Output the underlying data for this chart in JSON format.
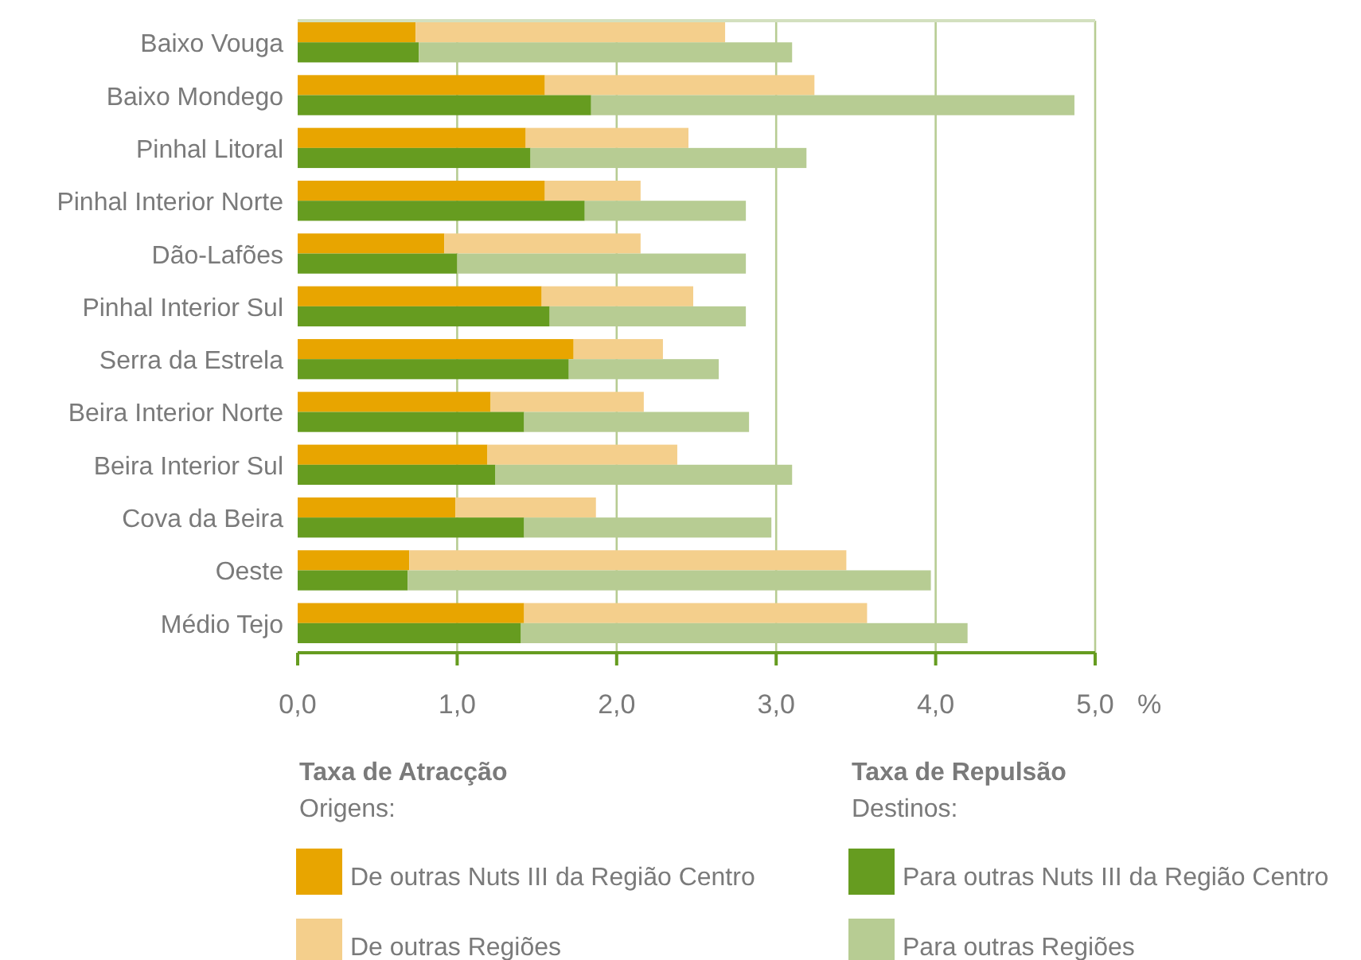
{
  "chart_data": [
    {
      "type": "bar",
      "orientation": "horizontal",
      "stacked": true,
      "categories": [
        "Baixo Vouga",
        "Baixo Mondego",
        "Pinhal Litoral",
        "Pinhal Interior Norte",
        "Dão-Lafões",
        "Pinhal Interior Sul",
        "Serra da Estrela",
        "Beira Interior Norte",
        "Beira Interior Sul",
        "Cova da Beira",
        "Oeste",
        "Médio Tejo"
      ],
      "series": [
        {
          "name": "De outras Nuts III da Região Centro",
          "color": "#e8a500",
          "values": [
            0.74,
            1.55,
            1.43,
            1.55,
            0.92,
            1.53,
            1.73,
            1.21,
            1.19,
            0.99,
            0.7,
            1.42
          ]
        },
        {
          "name": "De outras Regiões",
          "color": "#f4cf8c",
          "values": [
            1.94,
            1.69,
            1.02,
            0.6,
            1.23,
            0.95,
            0.56,
            0.96,
            1.19,
            0.88,
            2.74,
            2.15
          ]
        }
      ],
      "xlim": [
        0,
        5
      ],
      "xticks": [
        {
          "value": 0,
          "label": "0,0"
        },
        {
          "value": 1,
          "label": "1,0"
        },
        {
          "value": 2,
          "label": "2,0"
        },
        {
          "value": 3,
          "label": "3,0"
        },
        {
          "value": 4,
          "label": "4,0"
        },
        {
          "value": 5,
          "label": "5,0"
        }
      ],
      "xlabel": "%",
      "grid": "x",
      "legend": "bottom",
      "legend_title": "Taxa de Atracção",
      "annotations": [
        "Origens:"
      ]
    },
    {
      "type": "bar",
      "orientation": "horizontal",
      "stacked": true,
      "categories": [
        null,
        null,
        null,
        null,
        null,
        null,
        null,
        null,
        null,
        null,
        null,
        null
      ],
      "series": [
        {
          "name": "Para outras Nuts III da Região Centro",
          "color": "#669c20",
          "values": [
            0.76,
            1.84,
            1.46,
            1.8,
            1.0,
            1.58,
            1.7,
            1.42,
            1.24,
            1.42,
            0.69,
            1.4
          ]
        },
        {
          "name": "Para outras Regiões",
          "color": "#b7cc93",
          "values": [
            2.34,
            3.03,
            1.73,
            1.01,
            1.81,
            1.23,
            0.94,
            1.41,
            1.86,
            1.55,
            3.28,
            2.8
          ]
        }
      ],
      "xlim": [
        0,
        5
      ],
      "legend": "bottom",
      "legend_title": "Taxa de Repulsão",
      "annotations": [
        "Destinos:"
      ]
    }
  ]
}
